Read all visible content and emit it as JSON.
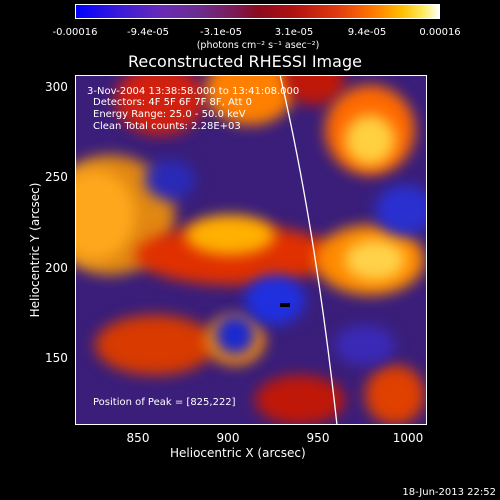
{
  "colorbar": {
    "ticks": [
      "-0.00016",
      "-9.4e-05",
      "-3.1e-05",
      "3.1e-05",
      "9.4e-05",
      "0.00016"
    ],
    "unit": "(photons cm⁻² s⁻¹ asec⁻²)"
  },
  "title": "Reconstructed RHESSI Image",
  "annotation": {
    "time_range": "3-Nov-2004 13:38:58.000 to 13:41:08.000",
    "detectors": "Detectors: 4F 5F 6F 7F 8F, Att 0",
    "energy": "Energy Range: 25.0 - 50.0 keV",
    "clean": "Clean     Total counts: 2.28E+03",
    "peak": "Position of Peak = [825,222]"
  },
  "x_axis": {
    "label": "Heliocentric X (arcsec)",
    "ticks": [
      "850",
      "900",
      "950",
      "1000"
    ]
  },
  "y_axis": {
    "label": "Heliocentric Y (arcsec)",
    "ticks": [
      "300",
      "250",
      "200",
      "150"
    ]
  },
  "timestamp": "18-Jun-2013 22:52"
}
